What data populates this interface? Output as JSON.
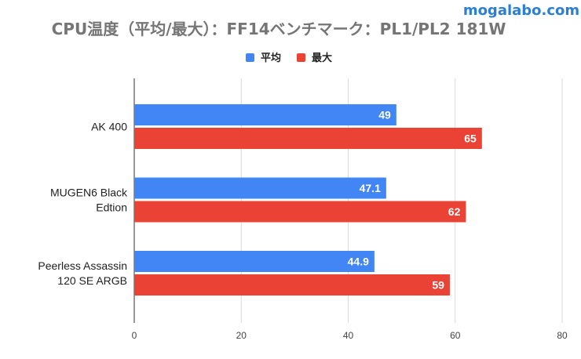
{
  "watermark": "mogalabo.com",
  "chart_data": {
    "type": "bar",
    "orientation": "horizontal",
    "title": "CPU温度（平均/最大）：FF14ベンチマーク：PL1/PL2 181W",
    "categories": [
      [
        "AK 400"
      ],
      [
        "MUGEN6 Black",
        "Edtion"
      ],
      [
        "Peerless Assassin",
        "120 SE ARGB"
      ]
    ],
    "series": [
      {
        "name": "平均",
        "color": "#4285f4",
        "values": [
          49,
          47.1,
          44.9
        ],
        "labels": [
          "49",
          "47.1",
          "44.9"
        ]
      },
      {
        "name": "最大",
        "color": "#ea4335",
        "values": [
          65,
          62,
          59
        ],
        "labels": [
          "65",
          "62",
          "59"
        ]
      }
    ],
    "xlim": [
      0,
      80
    ],
    "xticks": [
      0,
      20,
      40,
      60,
      80
    ],
    "xtick_labels": [
      "0",
      "20",
      "40",
      "60",
      "80"
    ],
    "grid": true,
    "legend_position": "top-center"
  }
}
